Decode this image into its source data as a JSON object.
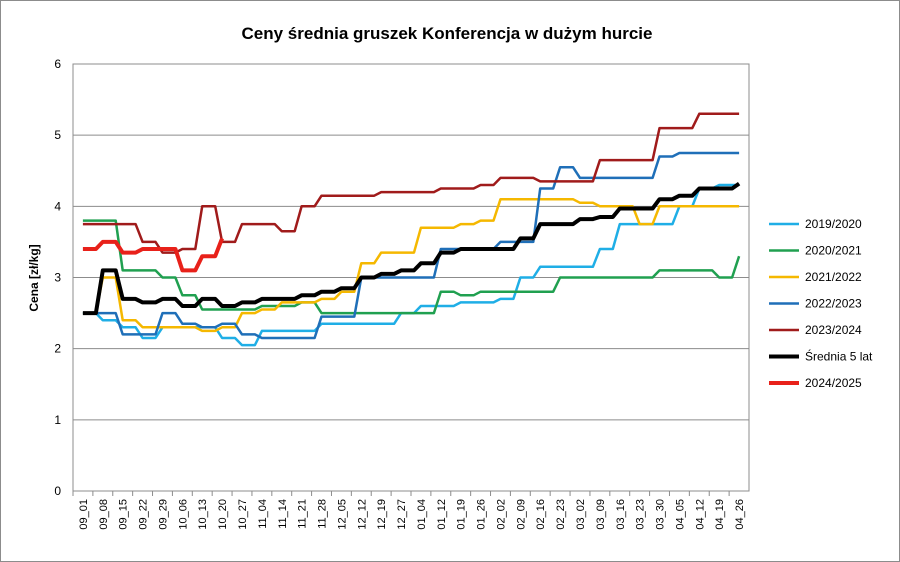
{
  "chart_data": {
    "type": "line",
    "title": "Ceny średnia gruszek Konferencja w dużym hurcie",
    "ylabel": "Cena [zł/kg]",
    "xlabel": "",
    "ylim": [
      0,
      6
    ],
    "yticks": [
      "0",
      "1",
      "2",
      "3",
      "4",
      "5",
      "6"
    ],
    "grid": "horizontal",
    "legend": "right",
    "categories": [
      "09_01",
      "09_08",
      "09_15",
      "09_22",
      "09_29",
      "10_06",
      "10_13",
      "10_20",
      "10_27",
      "11_04",
      "11_14",
      "11_21",
      "11_28",
      "12_05",
      "12_12",
      "12_19",
      "12_27",
      "01_04",
      "01_12",
      "01_19",
      "01_26",
      "02_02",
      "02_09",
      "02_16",
      "02_23",
      "03_02",
      "03_09",
      "03_16",
      "03_23",
      "03_30",
      "04_05",
      "04_12",
      "04_19",
      "04_26"
    ],
    "series": [
      {
        "name": "2019/2020",
        "color": "#1faee6",
        "width": 2.5,
        "values": [
          2.5,
          2.4,
          2.3,
          2.15,
          2.3,
          2.3,
          2.3,
          2.15,
          2.05,
          2.25,
          2.25,
          2.25,
          2.35,
          2.35,
          2.35,
          2.35,
          2.5,
          2.6,
          2.6,
          2.65,
          2.65,
          2.7,
          3.0,
          3.15,
          3.15,
          3.15,
          3.4,
          3.75,
          3.75,
          3.75,
          4.0,
          4.25,
          4.3,
          4.3
        ]
      },
      {
        "name": "2020/2021",
        "color": "#20a050",
        "width": 2.5,
        "values": [
          3.8,
          3.8,
          3.1,
          3.1,
          3.0,
          2.75,
          2.55,
          2.55,
          2.55,
          2.6,
          2.6,
          2.65,
          2.5,
          2.5,
          2.5,
          2.5,
          2.5,
          2.5,
          2.8,
          2.75,
          2.8,
          2.8,
          2.8,
          2.8,
          3.0,
          3.0,
          3.0,
          3.0,
          3.0,
          3.1,
          3.1,
          3.1,
          3.0,
          3.3
        ]
      },
      {
        "name": "2021/2022",
        "color": "#f5b800",
        "width": 2.5,
        "values": [
          2.5,
          3.0,
          2.4,
          2.3,
          2.3,
          2.3,
          2.25,
          2.3,
          2.5,
          2.55,
          2.65,
          2.65,
          2.7,
          2.8,
          3.2,
          3.35,
          3.35,
          3.7,
          3.7,
          3.75,
          3.8,
          4.1,
          4.1,
          4.1,
          4.1,
          4.05,
          4.0,
          4.0,
          3.75,
          4.0,
          4.0,
          4.0,
          4.0,
          4.0
        ]
      },
      {
        "name": "2022/2023",
        "color": "#1f6fb8",
        "width": 2.5,
        "values": [
          2.5,
          2.5,
          2.2,
          2.2,
          2.5,
          2.35,
          2.3,
          2.35,
          2.2,
          2.15,
          2.15,
          2.15,
          2.45,
          2.45,
          3.0,
          3.0,
          3.0,
          3.0,
          3.4,
          3.4,
          3.4,
          3.5,
          3.5,
          4.25,
          4.55,
          4.4,
          4.4,
          4.4,
          4.4,
          4.7,
          4.75,
          4.75,
          4.75,
          4.75
        ]
      },
      {
        "name": "2023/2024",
        "color": "#a01b1b",
        "width": 2.5,
        "values": [
          3.75,
          3.75,
          3.75,
          3.5,
          3.35,
          3.4,
          4.0,
          3.5,
          3.75,
          3.75,
          3.65,
          4.0,
          4.15,
          4.15,
          4.15,
          4.2,
          4.2,
          4.2,
          4.25,
          4.25,
          4.3,
          4.4,
          4.4,
          4.35,
          4.35,
          4.35,
          4.65,
          4.65,
          4.65,
          5.1,
          5.1,
          5.3,
          5.3,
          5.3
        ]
      },
      {
        "name": "Średnia 5 lat",
        "color": "#000000",
        "width": 4,
        "values": [
          2.5,
          3.1,
          2.7,
          2.65,
          2.7,
          2.6,
          2.7,
          2.6,
          2.65,
          2.7,
          2.7,
          2.75,
          2.8,
          2.85,
          3.0,
          3.05,
          3.1,
          3.2,
          3.35,
          3.4,
          3.4,
          3.4,
          3.55,
          3.75,
          3.75,
          3.82,
          3.85,
          3.97,
          3.97,
          4.1,
          4.15,
          4.25,
          4.25,
          4.32
        ]
      },
      {
        "name": "2024/2025",
        "color": "#e8211a",
        "width": 4,
        "values": [
          3.4,
          3.5,
          3.35,
          3.4,
          3.4,
          3.1,
          3.3,
          3.55,
          null,
          null,
          null,
          null,
          null,
          null,
          null,
          null,
          null,
          null,
          null,
          null,
          null,
          null,
          null,
          null,
          null,
          null,
          null,
          null,
          null,
          null,
          null,
          null,
          null,
          null
        ]
      }
    ]
  }
}
